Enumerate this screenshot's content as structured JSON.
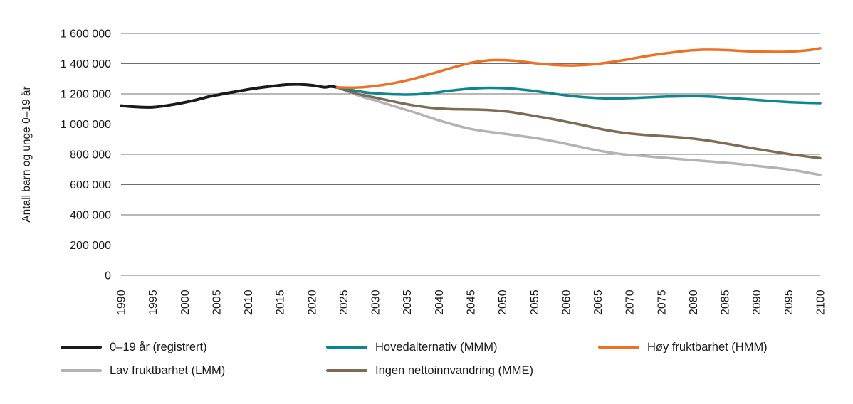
{
  "figure": {
    "background": "#ffffff",
    "text_color": "#1a1a1a",
    "gridline_color": "#6f6f6f"
  },
  "chart_data": {
    "type": "line",
    "title": "",
    "xlabel": "",
    "ylabel": "Antall barn og unge 0–19 år",
    "xlim": [
      1990,
      2100
    ],
    "ylim": [
      0,
      1600000
    ],
    "yticks": [
      0,
      200000,
      400000,
      600000,
      800000,
      1000000,
      1200000,
      1400000,
      1600000
    ],
    "xticks": [
      1990,
      1995,
      2000,
      2005,
      2010,
      2015,
      2020,
      2025,
      2030,
      2035,
      2040,
      2045,
      2050,
      2055,
      2060,
      2065,
      2070,
      2075,
      2080,
      2085,
      2090,
      2095,
      2100
    ],
    "grid": "horizontal",
    "legend_position": "bottom",
    "series": [
      {
        "key": "registrert",
        "name": "0–19 år (registrert)",
        "color": "#1a1a1a",
        "stroke_width": 4,
        "points": [
          [
            1990,
            1122000
          ],
          [
            1992,
            1115000
          ],
          [
            1995,
            1112000
          ],
          [
            1998,
            1128000
          ],
          [
            2001,
            1152000
          ],
          [
            2004,
            1183000
          ],
          [
            2007,
            1207000
          ],
          [
            2010,
            1229000
          ],
          [
            2013,
            1247000
          ],
          [
            2016,
            1261000
          ],
          [
            2018,
            1263000
          ],
          [
            2020,
            1257000
          ],
          [
            2022,
            1244000
          ],
          [
            2023,
            1249000
          ],
          [
            2024,
            1243000
          ]
        ]
      },
      {
        "key": "lmm",
        "name": "Lav fruktbarhet (LMM)",
        "color": "#b3b3b3",
        "stroke_width": 3.5,
        "points": [
          [
            2024,
            1243000
          ],
          [
            2026,
            1210000
          ],
          [
            2028,
            1180000
          ],
          [
            2030,
            1156000
          ],
          [
            2033,
            1118000
          ],
          [
            2036,
            1080000
          ],
          [
            2039,
            1038000
          ],
          [
            2042,
            1000000
          ],
          [
            2045,
            968000
          ],
          [
            2048,
            948000
          ],
          [
            2051,
            932000
          ],
          [
            2054,
            915000
          ],
          [
            2057,
            895000
          ],
          [
            2060,
            870000
          ],
          [
            2063,
            843000
          ],
          [
            2066,
            818000
          ],
          [
            2069,
            800000
          ],
          [
            2072,
            790000
          ],
          [
            2075,
            779000
          ],
          [
            2078,
            768000
          ],
          [
            2081,
            758000
          ],
          [
            2084,
            748000
          ],
          [
            2087,
            737000
          ],
          [
            2090,
            724000
          ],
          [
            2093,
            710000
          ],
          [
            2096,
            694000
          ],
          [
            2100,
            664000
          ]
        ]
      },
      {
        "key": "mme",
        "name": "Ingen nettoinnvandring (MME)",
        "color": "#7d6b56",
        "stroke_width": 3.5,
        "points": [
          [
            2024,
            1243000
          ],
          [
            2026,
            1215000
          ],
          [
            2028,
            1192000
          ],
          [
            2030,
            1175000
          ],
          [
            2033,
            1148000
          ],
          [
            2036,
            1124000
          ],
          [
            2039,
            1107000
          ],
          [
            2042,
            1099000
          ],
          [
            2045,
            1097000
          ],
          [
            2048,
            1093000
          ],
          [
            2051,
            1082000
          ],
          [
            2054,
            1062000
          ],
          [
            2057,
            1040000
          ],
          [
            2060,
            1016000
          ],
          [
            2063,
            990000
          ],
          [
            2066,
            963000
          ],
          [
            2069,
            943000
          ],
          [
            2072,
            930000
          ],
          [
            2075,
            921000
          ],
          [
            2078,
            912000
          ],
          [
            2081,
            899000
          ],
          [
            2084,
            880000
          ],
          [
            2087,
            858000
          ],
          [
            2090,
            836000
          ],
          [
            2093,
            815000
          ],
          [
            2096,
            796000
          ],
          [
            2100,
            774000
          ]
        ]
      },
      {
        "key": "mmm",
        "name": "Hovedalternativ (MMM)",
        "color": "#0e868e",
        "stroke_width": 3.5,
        "points": [
          [
            2024,
            1243000
          ],
          [
            2026,
            1228000
          ],
          [
            2028,
            1213000
          ],
          [
            2030,
            1204000
          ],
          [
            2033,
            1197000
          ],
          [
            2036,
            1196000
          ],
          [
            2039,
            1206000
          ],
          [
            2042,
            1222000
          ],
          [
            2045,
            1234000
          ],
          [
            2048,
            1240000
          ],
          [
            2051,
            1236000
          ],
          [
            2054,
            1224000
          ],
          [
            2057,
            1207000
          ],
          [
            2060,
            1190000
          ],
          [
            2063,
            1178000
          ],
          [
            2066,
            1171000
          ],
          [
            2069,
            1171000
          ],
          [
            2072,
            1175000
          ],
          [
            2076,
            1182000
          ],
          [
            2080,
            1185000
          ],
          [
            2083,
            1181000
          ],
          [
            2086,
            1172000
          ],
          [
            2090,
            1160000
          ],
          [
            2094,
            1148000
          ],
          [
            2097,
            1142000
          ],
          [
            2100,
            1139000
          ]
        ]
      },
      {
        "key": "hmm",
        "name": "Høy fruktbarhet (HMM)",
        "color": "#ee7023",
        "stroke_width": 3.5,
        "points": [
          [
            2024,
            1243000
          ],
          [
            2026,
            1241000
          ],
          [
            2028,
            1244000
          ],
          [
            2030,
            1252000
          ],
          [
            2033,
            1272000
          ],
          [
            2036,
            1300000
          ],
          [
            2039,
            1335000
          ],
          [
            2042,
            1372000
          ],
          [
            2045,
            1405000
          ],
          [
            2047,
            1418000
          ],
          [
            2049,
            1424000
          ],
          [
            2052,
            1419000
          ],
          [
            2055,
            1404000
          ],
          [
            2058,
            1392000
          ],
          [
            2061,
            1388000
          ],
          [
            2064,
            1394000
          ],
          [
            2067,
            1410000
          ],
          [
            2070,
            1430000
          ],
          [
            2073,
            1452000
          ],
          [
            2076,
            1470000
          ],
          [
            2079,
            1485000
          ],
          [
            2082,
            1492000
          ],
          [
            2085,
            1490000
          ],
          [
            2088,
            1483000
          ],
          [
            2092,
            1478000
          ],
          [
            2095,
            1479000
          ],
          [
            2098,
            1488000
          ],
          [
            2100,
            1502000
          ]
        ]
      }
    ],
    "legend": [
      {
        "series_key": "registrert",
        "row": 0,
        "col": 0
      },
      {
        "series_key": "mmm",
        "row": 0,
        "col": 1
      },
      {
        "series_key": "hmm",
        "row": 0,
        "col": 2
      },
      {
        "series_key": "lmm",
        "row": 1,
        "col": 0
      },
      {
        "series_key": "mme",
        "row": 1,
        "col": 1
      }
    ]
  }
}
